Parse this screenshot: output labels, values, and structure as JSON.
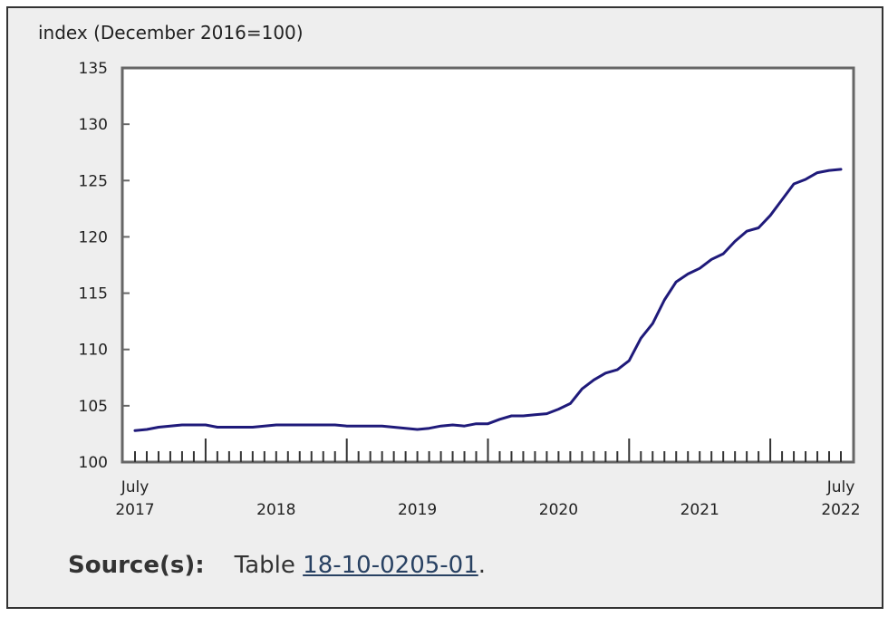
{
  "chart_data": {
    "type": "line",
    "ylabel": "index (December 2016=100)",
    "ylim": [
      100,
      135
    ],
    "yticks": [
      "100",
      "105",
      "110",
      "115",
      "120",
      "125",
      "130",
      "135"
    ],
    "x_start": "2017-07",
    "x_end": "2022-07",
    "xtick_labels": [
      {
        "date": "2017-07",
        "line1": "July",
        "line2": "2017"
      },
      {
        "date": "2018-07",
        "line1": "",
        "line2": "2018"
      },
      {
        "date": "2019-07",
        "line1": "",
        "line2": "2019"
      },
      {
        "date": "2020-07",
        "line1": "",
        "line2": "2020"
      },
      {
        "date": "2021-07",
        "line1": "",
        "line2": "2021"
      },
      {
        "date": "2022-07",
        "line1": "July",
        "line2": "2022"
      }
    ],
    "line_color": "#1f1a7a",
    "series": [
      {
        "x": [
          "2017-07",
          "2017-08",
          "2017-09",
          "2017-10",
          "2017-11",
          "2017-12",
          "2018-01",
          "2018-02",
          "2018-03",
          "2018-04",
          "2018-05",
          "2018-06",
          "2018-07",
          "2018-08",
          "2018-09",
          "2018-10",
          "2018-11",
          "2018-12",
          "2019-01",
          "2019-02",
          "2019-03",
          "2019-04",
          "2019-05",
          "2019-06",
          "2019-07",
          "2019-08",
          "2019-09",
          "2019-10",
          "2019-11",
          "2019-12",
          "2020-01",
          "2020-02",
          "2020-03",
          "2020-04",
          "2020-05",
          "2020-06",
          "2020-07",
          "2020-08",
          "2020-09",
          "2020-10",
          "2020-11",
          "2020-12",
          "2021-01",
          "2021-02",
          "2021-03",
          "2021-04",
          "2021-05",
          "2021-06",
          "2021-07",
          "2021-08",
          "2021-09",
          "2021-10",
          "2021-11",
          "2021-12",
          "2022-01",
          "2022-02",
          "2022-03",
          "2022-04",
          "2022-05",
          "2022-06",
          "2022-07"
        ],
        "values": [
          102.8,
          102.9,
          103.1,
          103.2,
          103.3,
          103.3,
          103.3,
          103.1,
          103.1,
          103.1,
          103.1,
          103.2,
          103.3,
          103.3,
          103.3,
          103.3,
          103.3,
          103.3,
          103.2,
          103.2,
          103.2,
          103.2,
          103.1,
          103.0,
          102.9,
          103.0,
          103.2,
          103.3,
          103.2,
          103.4,
          103.4,
          103.8,
          104.1,
          104.1,
          104.2,
          104.3,
          104.7,
          105.2,
          106.5,
          107.3,
          107.9,
          108.2,
          109.0,
          111.0,
          112.3,
          114.4,
          116.0,
          116.7,
          117.2,
          118.0,
          118.5,
          119.6,
          120.5,
          120.8,
          121.9,
          123.3,
          124.7,
          125.1,
          125.7,
          125.9,
          126.0
        ]
      }
    ]
  },
  "source": {
    "label": "Source(s):",
    "prefix": "Table",
    "link_text": "18-10-0205-01",
    "suffix": "."
  }
}
